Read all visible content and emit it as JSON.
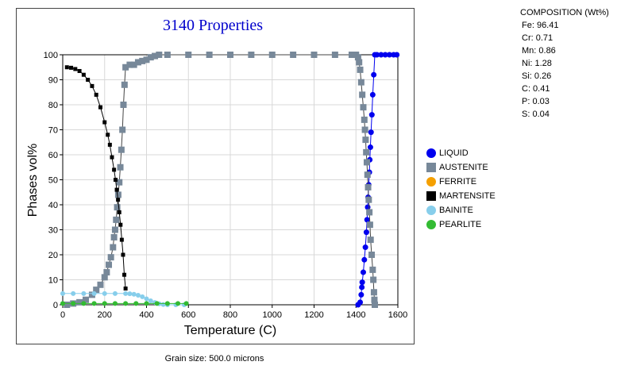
{
  "composition": {
    "title": "COMPOSITION (Wt%)",
    "lines": [
      "Fe: 96.41",
      "Cr: 0.71",
      "Mn: 0.86",
      "Ni: 1.28",
      "Si: 0.26",
      "C: 0.41",
      "P: 0.03",
      "S: 0.04"
    ]
  },
  "footer_note": "Grain size: 500.0 microns",
  "chart_data": {
    "type": "line",
    "title": "3140 Properties",
    "xlabel": "Temperature (C)",
    "ylabel": "Phases vol%",
    "xlim": [
      0,
      1600
    ],
    "ylim": [
      0,
      100
    ],
    "xticks": [
      0,
      200,
      400,
      600,
      800,
      1000,
      1200,
      1400,
      1600
    ],
    "yticks": [
      0,
      10,
      20,
      30,
      40,
      50,
      60,
      70,
      80,
      90,
      100
    ],
    "grid": true,
    "legend_position": "right",
    "series": [
      {
        "name": "LIQUID",
        "color": "#0000ee",
        "marker": "circle",
        "points": [
          [
            1440,
            0
          ],
          [
            1470,
            0
          ],
          [
            1490,
            0
          ],
          [
            1495,
            0
          ],
          [
            1500,
            0
          ],
          [
            1510,
            0
          ],
          [
            1520,
            0
          ],
          [
            1540,
            0
          ],
          [
            1560,
            0
          ],
          [
            1580,
            0
          ],
          [
            1600,
            0
          ]
        ],
        "points_visible": [
          [
            1410,
            0
          ],
          [
            1420,
            1
          ],
          [
            1425,
            4
          ],
          [
            1428,
            7
          ],
          [
            1430,
            9
          ],
          [
            1435,
            13
          ],
          [
            1440,
            18
          ],
          [
            1445,
            23
          ],
          [
            1450,
            29
          ],
          [
            1453,
            34
          ],
          [
            1456,
            39
          ],
          [
            1458,
            43
          ],
          [
            1461,
            48
          ],
          [
            1464,
            53
          ],
          [
            1466,
            58
          ],
          [
            1469,
            63
          ],
          [
            1472,
            69
          ],
          [
            1476,
            76
          ],
          [
            1480,
            84
          ],
          [
            1485,
            92
          ],
          [
            1490,
            100
          ],
          [
            1500,
            100
          ],
          [
            1520,
            100
          ],
          [
            1540,
            100
          ],
          [
            1560,
            100
          ],
          [
            1580,
            100
          ],
          [
            1595,
            100
          ]
        ]
      },
      {
        "name": "AUSTENITE",
        "color": "#778899",
        "marker": "square",
        "points": [
          [
            20,
            0
          ],
          [
            50,
            0.5
          ],
          [
            80,
            1
          ],
          [
            110,
            2
          ],
          [
            140,
            4
          ],
          [
            160,
            6
          ],
          [
            180,
            8
          ],
          [
            200,
            11
          ],
          [
            210,
            13
          ],
          [
            220,
            16
          ],
          [
            230,
            19
          ],
          [
            240,
            23
          ],
          [
            245,
            27
          ],
          [
            250,
            30
          ],
          [
            255,
            34
          ],
          [
            260,
            39
          ],
          [
            265,
            44
          ],
          [
            270,
            49
          ],
          [
            275,
            55
          ],
          [
            280,
            62
          ],
          [
            285,
            70
          ],
          [
            290,
            80
          ],
          [
            295,
            88
          ],
          [
            300,
            95
          ],
          [
            320,
            96
          ],
          [
            340,
            96
          ],
          [
            360,
            97
          ],
          [
            380,
            97.5
          ],
          [
            400,
            98
          ],
          [
            420,
            99
          ],
          [
            440,
            99.5
          ],
          [
            460,
            100
          ],
          [
            500,
            100
          ],
          [
            600,
            100
          ],
          [
            700,
            100
          ],
          [
            800,
            100
          ],
          [
            900,
            100
          ],
          [
            1000,
            100
          ],
          [
            1100,
            100
          ],
          [
            1200,
            100
          ],
          [
            1300,
            100
          ],
          [
            1380,
            100
          ],
          [
            1400,
            100
          ],
          [
            1410,
            99
          ],
          [
            1415,
            97
          ],
          [
            1420,
            94
          ],
          [
            1425,
            89
          ],
          [
            1430,
            84
          ],
          [
            1435,
            79
          ],
          [
            1440,
            74
          ],
          [
            1443,
            70
          ],
          [
            1446,
            66
          ],
          [
            1449,
            61
          ],
          [
            1452,
            57
          ],
          [
            1455,
            52
          ],
          [
            1458,
            47
          ],
          [
            1461,
            42
          ],
          [
            1464,
            37
          ],
          [
            1467,
            32
          ],
          [
            1470,
            26
          ],
          [
            1475,
            20
          ],
          [
            1480,
            14
          ],
          [
            1483,
            10
          ],
          [
            1486,
            5
          ],
          [
            1488,
            2
          ],
          [
            1490,
            0
          ]
        ]
      },
      {
        "name": "FERRITE",
        "color": "#f5a000",
        "marker": "circle",
        "points": []
      },
      {
        "name": "MARTENSITE",
        "color": "#000000",
        "marker": "square",
        "points": [
          [
            20,
            95
          ],
          [
            40,
            94.8
          ],
          [
            60,
            94.3
          ],
          [
            80,
            93.5
          ],
          [
            100,
            92
          ],
          [
            120,
            90
          ],
          [
            140,
            87.5
          ],
          [
            160,
            84
          ],
          [
            180,
            79
          ],
          [
            200,
            73
          ],
          [
            215,
            68
          ],
          [
            225,
            64
          ],
          [
            235,
            59
          ],
          [
            245,
            54
          ],
          [
            252,
            50
          ],
          [
            258,
            46
          ],
          [
            264,
            42
          ],
          [
            270,
            37
          ],
          [
            276,
            32
          ],
          [
            282,
            26
          ],
          [
            288,
            20
          ],
          [
            294,
            12
          ],
          [
            300,
            6.5
          ]
        ]
      },
      {
        "name": "BAINITE",
        "color": "#87ceeb",
        "marker": "circle",
        "points": [
          [
            0,
            4.5
          ],
          [
            50,
            4.5
          ],
          [
            100,
            4.5
          ],
          [
            150,
            4.5
          ],
          [
            200,
            4.5
          ],
          [
            250,
            4.5
          ],
          [
            300,
            4.5
          ],
          [
            320,
            4.4
          ],
          [
            340,
            4.2
          ],
          [
            360,
            3.8
          ],
          [
            380,
            3.2
          ],
          [
            400,
            2.4
          ],
          [
            420,
            1.6
          ],
          [
            440,
            0.9
          ],
          [
            460,
            0.4
          ],
          [
            480,
            0.1
          ],
          [
            500,
            0
          ],
          [
            540,
            0
          ],
          [
            580,
            0
          ]
        ]
      },
      {
        "name": "PEARLITE",
        "color": "#33bb33",
        "marker": "circle",
        "points": [
          [
            0,
            0.5
          ],
          [
            50,
            0.5
          ],
          [
            100,
            0.5
          ],
          [
            150,
            0.5
          ],
          [
            200,
            0.5
          ],
          [
            250,
            0.5
          ],
          [
            300,
            0.5
          ],
          [
            350,
            0.5
          ],
          [
            400,
            0.5
          ],
          [
            450,
            0.5
          ],
          [
            500,
            0.5
          ],
          [
            550,
            0.5
          ],
          [
            590,
            0.5
          ]
        ]
      }
    ]
  }
}
